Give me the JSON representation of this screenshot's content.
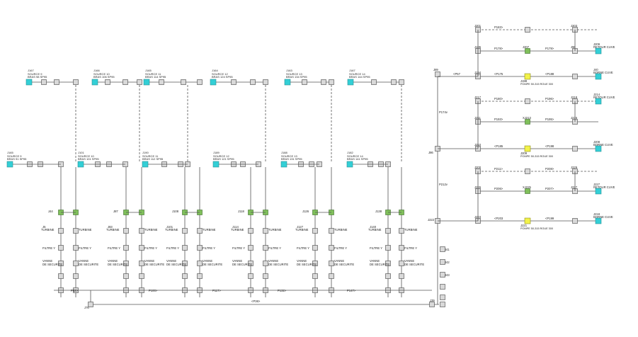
{
  "colors": {
    "pipe": "#555555",
    "junction_fill": "#d9d9d9",
    "junction_stroke": "#444444",
    "source_fill": "#33cfd6",
    "pump_fill": "#f2f24a",
    "valve_fill": "#7fbf5a",
    "text": "#222222"
  },
  "sources": [
    {
      "id": "J167",
      "name": "SOURCE 9",
      "sub": "BRAS 98 SP95"
    },
    {
      "id": "J166",
      "name": "SOURCE 10",
      "sub": "BRAS 106 SP95"
    },
    {
      "id": "J165",
      "name": "SOURCE 11",
      "sub": "BRAS 114 SP95"
    },
    {
      "id": "J164",
      "name": "SOURCE 12",
      "sub": "BRAS 124 SP95"
    },
    {
      "id": "J163",
      "name": "SOURCE 13",
      "sub": "BRAS 134 SP95"
    },
    {
      "id": "J167",
      "name": "SOURCE 14",
      "sub": "BRAS 144 SP95"
    }
  ],
  "sources_mid": [
    {
      "id": "J165",
      "name": "SOURCE 9",
      "sub": "BRAS 91 SP95"
    },
    {
      "id": "J101",
      "name": "SOURCE 10",
      "sub": "BRAS 101 SP95"
    },
    {
      "id": "J190",
      "name": "SOURCE 11",
      "sub": "BRAS 112 SP95"
    },
    {
      "id": "J189",
      "name": "SOURCE 12",
      "sub": "BRAS 121 SP95"
    },
    {
      "id": "J188",
      "name": "SOURCE 13",
      "sub": "BRAS 131 SP95"
    },
    {
      "id": "J182",
      "name": "SOURCE 14",
      "sub": "BRAS 141 SP95"
    }
  ],
  "columns": [
    {
      "turbine": "TURBINE",
      "filter": "FILTRE Y",
      "safety": "VANNE DE SECURITE",
      "a": "J44",
      "b": "J5",
      "c": "J46",
      "d": "J9",
      "e": "J16"
    },
    {
      "turbine": "TURBINE",
      "filter": "FILTRE Y",
      "safety": "VANNE DE SECURITE",
      "a": "J87",
      "b": "J83",
      "c": "J83",
      "d": "J88",
      "e": "J90"
    },
    {
      "turbine": "TURBINE",
      "filter": "FILTRE Y",
      "safety": "VANNE DE SECURITE",
      "a": "J108",
      "b": "J101",
      "c": "J103",
      "d": "J126",
      "e": "J128"
    },
    {
      "turbine": "TURBINE",
      "filter": "FILTRE Y",
      "safety": "VANNE DE SECURITE",
      "a": "J118",
      "b": "J114",
      "c": "J115",
      "d": "J116",
      "e": "J118"
    },
    {
      "turbine": "TURBINE",
      "filter": "FILTRE Y",
      "safety": "VANNE DE SECURITE",
      "a": "J126",
      "b": "J127",
      "c": "J128",
      "d": "J129",
      "e": "J129"
    },
    {
      "turbine": "TURBINE",
      "filter": "FILTRE Y",
      "safety": "VANNE DE SECURITE",
      "a": "J138",
      "b": "J140",
      "c": "J141",
      "d": "J142",
      "e": "J142"
    }
  ],
  "bottom_labels": {
    "header": "<P36>",
    "l1": "J76",
    "l2": "J80",
    "l3": "J105",
    "l4": "J115",
    "l5": "J131",
    "l6": "J144",
    "l7": "J78",
    "l8": "J39",
    "l9": "J30",
    "p1": "P82>",
    "p2": "P100>",
    "p3": "P117>",
    "p4": "P132>",
    "p5": "P147>",
    "p6": "<P28"
  },
  "right_panel": [
    {
      "label1": "J201",
      "label2": "XJ203",
      "label3": "J203",
      "pipe": "P183>",
      "tail": "P186>"
    },
    {
      "label1": "J195",
      "valve": "J207",
      "label3": "J96",
      "pipe": "P178>",
      "pipe2": "P179>",
      "end": "J209",
      "end_name": "RETOUR CUVE"
    },
    {
      "label1": "J194",
      "pump": "J198",
      "pump_name": "POMPE 50-315 ROUE 300",
      "end": "J40",
      "end_name": "BORNE CUVE",
      "pipe": "<P175",
      "pipe2": "<P188"
    },
    {
      "label1": "J217",
      "label3": "J218",
      "pipe": "P180>",
      "pipe2": "P196>",
      "end": "J214",
      "end_name": "RETOUR CUVE"
    },
    {
      "label1": "J211",
      "valve": "XJ213",
      "label3": "J215",
      "pipe": "P193>",
      "pipe2": "P195>"
    },
    {
      "label1": "J210",
      "pump": "J209",
      "pump_name": "POMPE 50-315 ROUE 300",
      "end": "J208",
      "end_name": "BORNE CUVE",
      "pipe": "<P185",
      "pipe2": "<P198"
    },
    {
      "label1": "J200",
      "label3": "J229",
      "pipe": "P211>",
      "pipe2": "P208>"
    },
    {
      "label1": "J226",
      "valve": "XJ225",
      "label3": "J227",
      "pipe": "P206>",
      "pipe2": "P207>",
      "end": "J227",
      "end_name": "RETOUR CUVE"
    },
    {
      "label1": "J223",
      "pump": "J221",
      "pump_name": "POMPE 50-315 ROUE 300",
      "end": "J218",
      "end_name": "BORNE CUVE",
      "pipe": "<P203",
      "pipe2": "<P199"
    }
  ],
  "trunk_labels": {
    "j1": "J89",
    "j2": "J86",
    "j3": "J222",
    "p1": "<P57",
    "p2": "P174v",
    "p3": "P212v",
    "p4": "P212v",
    "j4": "J41",
    "j5": "J42",
    "j6": "J43"
  }
}
